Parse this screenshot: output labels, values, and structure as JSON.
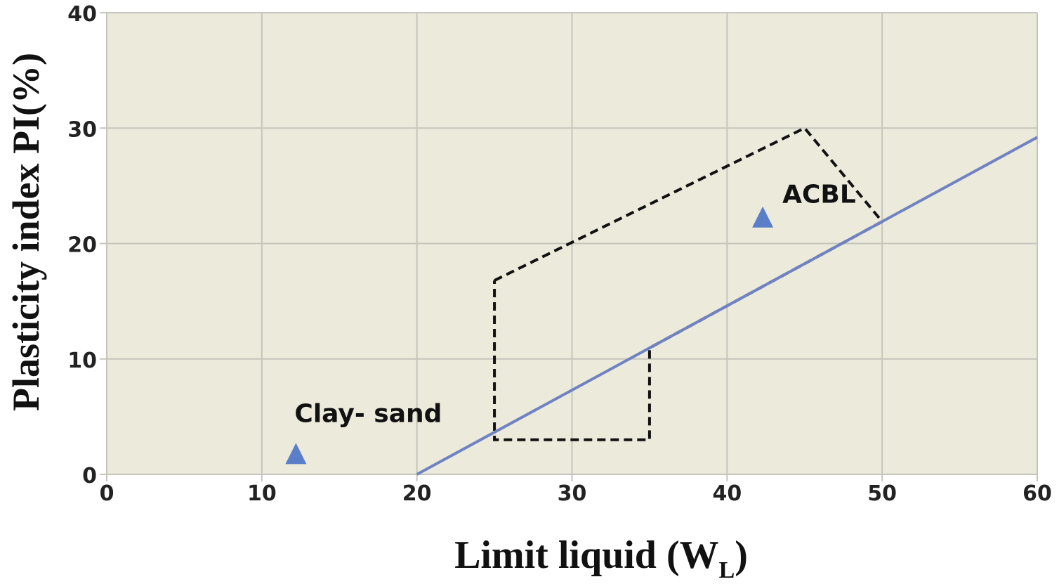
{
  "chart_data": {
    "type": "scatter",
    "title": "",
    "xlabel": "Limit liquid (W",
    "xlabel_subscript": "L",
    "xlabel_close": ")",
    "ylabel": "Plasticity index PI(%)",
    "xlim": [
      0,
      60
    ],
    "ylim": [
      0,
      40
    ],
    "x_ticks": [
      0,
      10,
      20,
      30,
      40,
      50,
      60
    ],
    "y_ticks": [
      0,
      10,
      20,
      30,
      40
    ],
    "x_tick_labels": [
      "0",
      "10",
      "20",
      "30",
      "40",
      "50",
      "60"
    ],
    "y_tick_labels": [
      "0",
      "10",
      "20",
      "30",
      "40"
    ],
    "grid": true,
    "plot_background": "#eceadb",
    "grid_color": "#c6c5bb",
    "a_line": {
      "color": "#6f82c2",
      "points": [
        [
          20,
          0
        ],
        [
          60,
          29.2
        ]
      ]
    },
    "boundary": {
      "style": "dashed",
      "color": "#111111",
      "points": [
        [
          25,
          16.8
        ],
        [
          45,
          30
        ],
        [
          50,
          21.9
        ],
        [
          47.4,
          20
        ],
        [
          35,
          10.95
        ],
        [
          35,
          3
        ],
        [
          25,
          3
        ],
        [
          25,
          16.8
        ]
      ]
    },
    "points": [
      {
        "label": "Clay- sand",
        "x": 12.2,
        "y": 1.8,
        "marker": "triangle",
        "color": "#5b7ec9"
      },
      {
        "label": "ACBL",
        "x": 42.3,
        "y": 22.3,
        "marker": "triangle",
        "color": "#5b7ec9"
      }
    ]
  }
}
